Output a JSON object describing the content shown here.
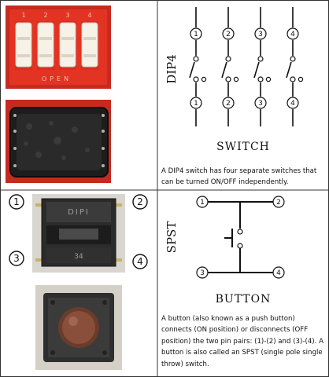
{
  "dip4": {
    "side_label": "DIP4",
    "title": "SWITCH",
    "caption": "A DIP4 switch has four separate switches that can be turned ON/OFF independently.",
    "switch_numbers": [
      "1",
      "2",
      "3",
      "4"
    ],
    "photo_top": {
      "switch_numbers": [
        "1",
        "2",
        "3",
        "4"
      ],
      "footer": "OPEN",
      "colors": {
        "board": "#e0261d",
        "switch": "#f6f2e8"
      }
    }
  },
  "spst": {
    "side_label": "SPST",
    "title": "BUTTON",
    "caption": "A button (also known as a push button) connects (ON position) or disconnects (OFF position) the two pin pairs: (1)-(2) and (3)-(4). A button is also called an SPST (single pole single throw) switch.",
    "pin_numbers": [
      "1",
      "2",
      "3",
      "4"
    ],
    "photo_labels": [
      "1",
      "2",
      "3",
      "4"
    ],
    "photo_top": {
      "body_text": "DIPI",
      "bottom_text": "34"
    }
  }
}
